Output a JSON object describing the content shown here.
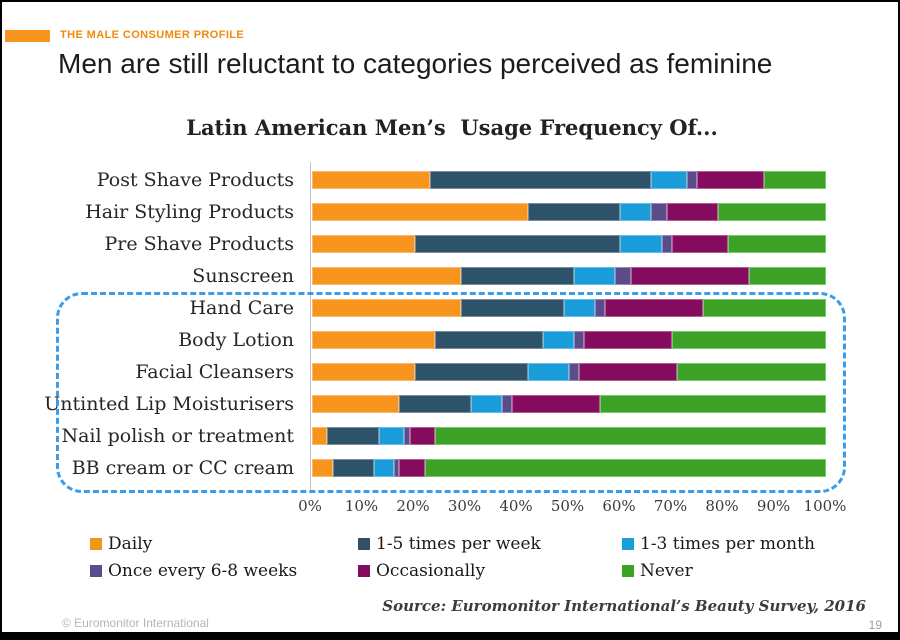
{
  "kicker": {
    "label": "THE MALE CONSUMER PROFILE"
  },
  "title": "Men are still reluctant to categories perceived as feminine",
  "chart_data": {
    "type": "bar",
    "stacked": true,
    "orientation": "horizontal",
    "title": "Latin American Men’s  Usage Frequency Of...",
    "categories": [
      "Post Shave Products",
      "Hair Styling Products",
      "Pre Shave Products",
      "Sunscreen",
      "Hand Care",
      "Body Lotion",
      "Facial Cleansers",
      "Untinted Lip Moisturisers",
      "Nail polish or treatment",
      "BB cream or CC cream"
    ],
    "series": [
      {
        "name": "Daily",
        "color": "#F7941E",
        "values": [
          23,
          42,
          20,
          29,
          29,
          24,
          20,
          17,
          3,
          4
        ]
      },
      {
        "name": "1-5 times per week",
        "color": "#2D5269",
        "values": [
          43,
          18,
          40,
          22,
          20,
          21,
          22,
          14,
          10,
          8
        ]
      },
      {
        "name": "1-3 times per month",
        "color": "#1B9DD9",
        "values": [
          7,
          6,
          8,
          8,
          6,
          6,
          8,
          6,
          5,
          4
        ]
      },
      {
        "name": "Once every 6-8 weeks",
        "color": "#5C4B8A",
        "values": [
          2,
          3,
          2,
          3,
          2,
          2,
          2,
          2,
          1,
          1
        ]
      },
      {
        "name": "Occasionally",
        "color": "#840B5D",
        "values": [
          13,
          10,
          11,
          23,
          19,
          17,
          19,
          17,
          5,
          5
        ]
      },
      {
        "name": "Never",
        "color": "#3BA226",
        "values": [
          12,
          21,
          19,
          15,
          24,
          30,
          29,
          44,
          76,
          78
        ]
      }
    ],
    "x_ticks": [
      "0%",
      "10%",
      "20%",
      "30%",
      "40%",
      "50%",
      "60%",
      "70%",
      "80%",
      "90%",
      "100%"
    ],
    "xlim": [
      0,
      100
    ],
    "grid": false,
    "legend_position": "bottom",
    "highlight_box": {
      "from_category": "Hand Care",
      "to_category": "BB cream or CC cream",
      "style": "blue-dashed-rounded"
    }
  },
  "source": "Source: Euromonitor International’s Beauty Survey, 2016",
  "footer": {
    "copyright": "© Euromonitor International",
    "page_number": "19"
  },
  "colors": {
    "accent_orange": "#F7941E",
    "dashed_box_blue": "#3B9CE8",
    "axis_line": "#c3c3c3",
    "bottom_bar": "#000000"
  }
}
